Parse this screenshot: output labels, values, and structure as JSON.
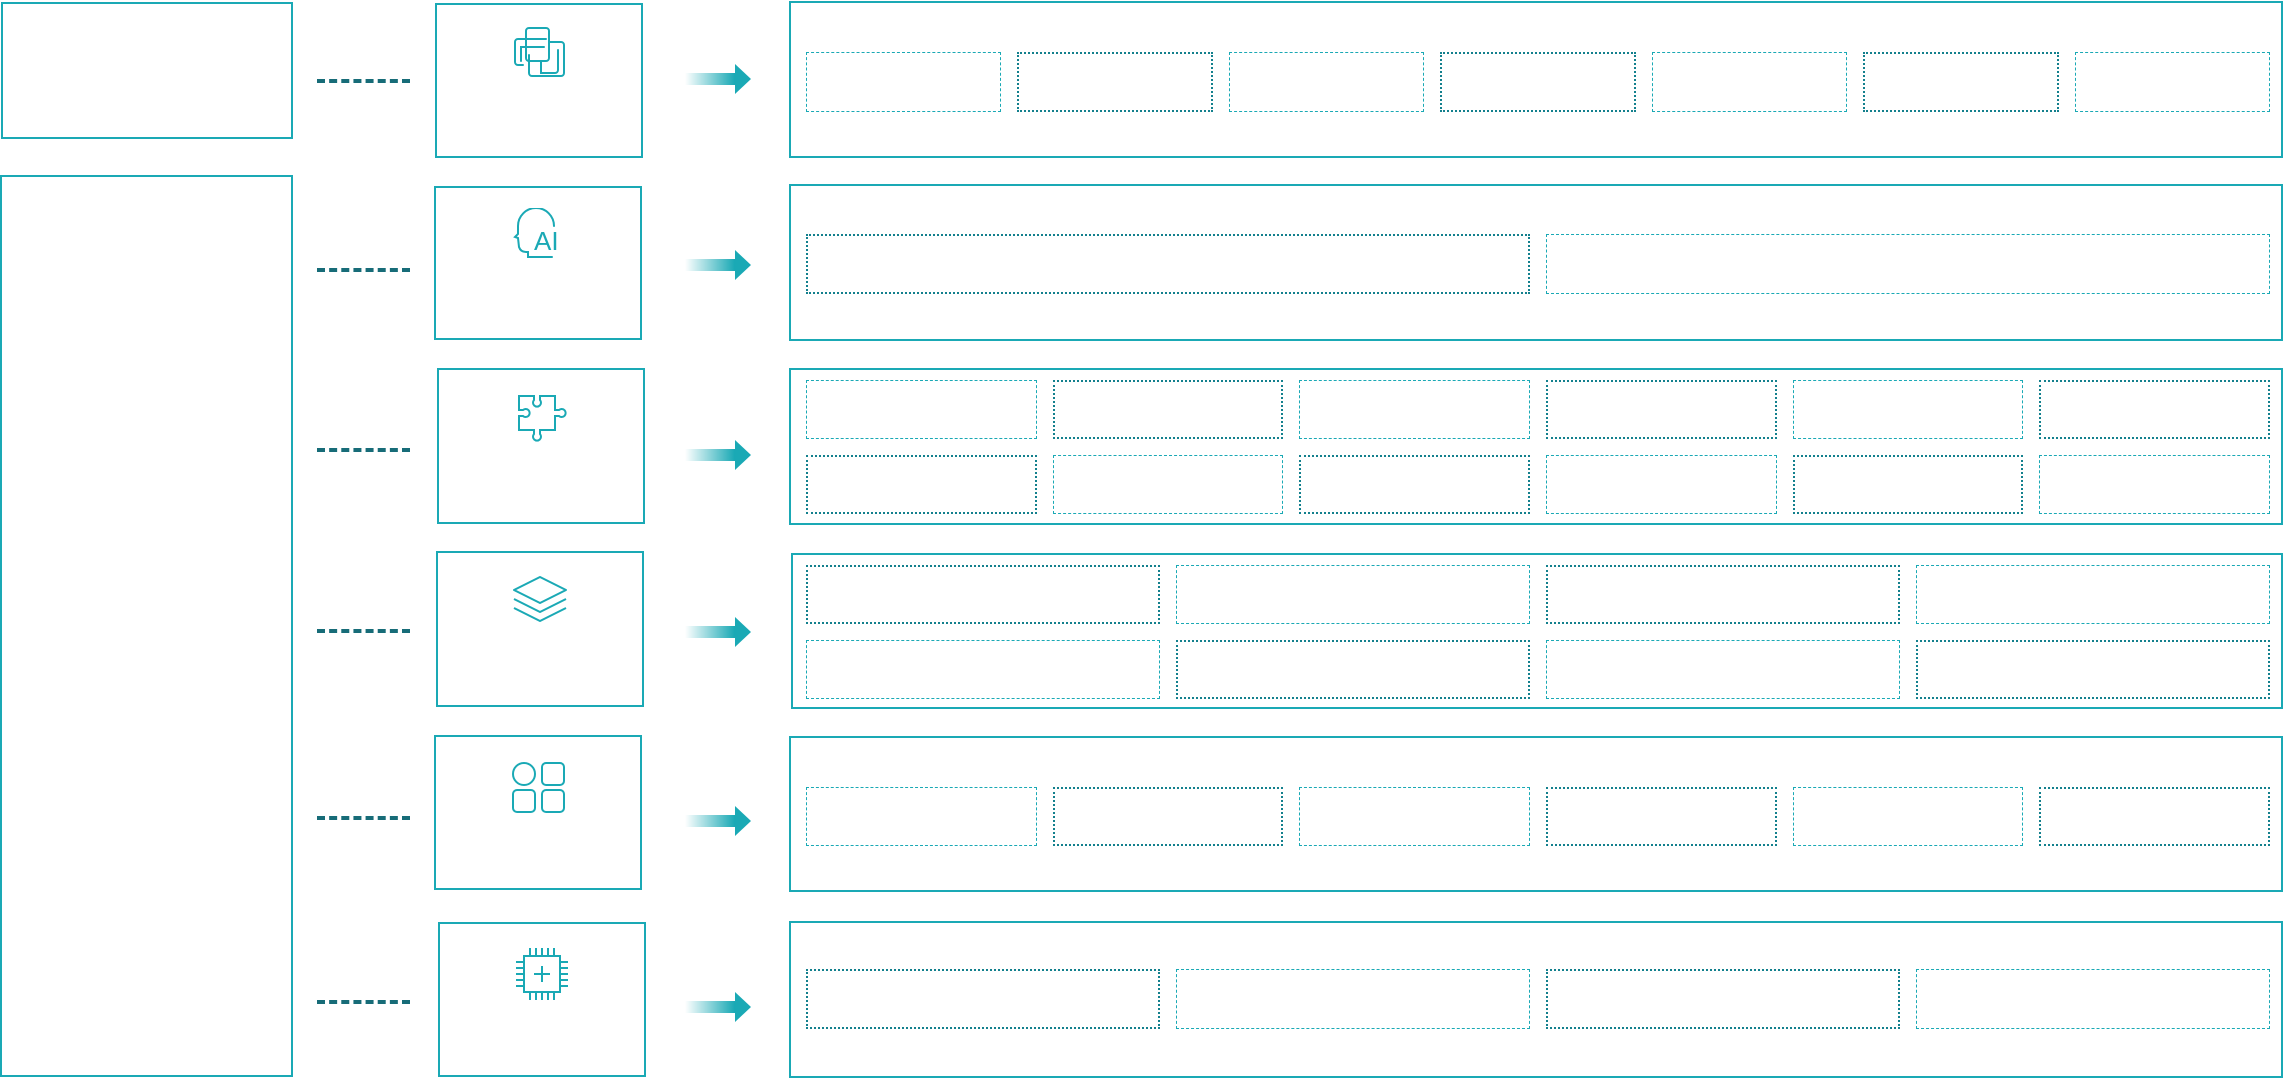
{
  "colors": {
    "accent": "#1aa9b5",
    "connector": "#176c78"
  },
  "left_panels": [
    {
      "name": "top-panel"
    },
    {
      "name": "bottom-panel"
    }
  ],
  "rows": [
    {
      "icon": "overlapping-windows-icon",
      "grid": {
        "rows": 1,
        "cols": 7
      }
    },
    {
      "icon": "ai-head-icon",
      "icon_text": "AI",
      "grid": {
        "rows": 1,
        "cols": 2
      }
    },
    {
      "icon": "puzzle-piece-icon",
      "grid": {
        "rows": 2,
        "cols": 6
      }
    },
    {
      "icon": "layers-icon",
      "grid": {
        "rows": 2,
        "cols": 4
      }
    },
    {
      "icon": "apps-grid-icon",
      "grid": {
        "rows": 1,
        "cols": 6
      }
    },
    {
      "icon": "chip-icon",
      "grid": {
        "rows": 1,
        "cols": 4
      }
    }
  ]
}
